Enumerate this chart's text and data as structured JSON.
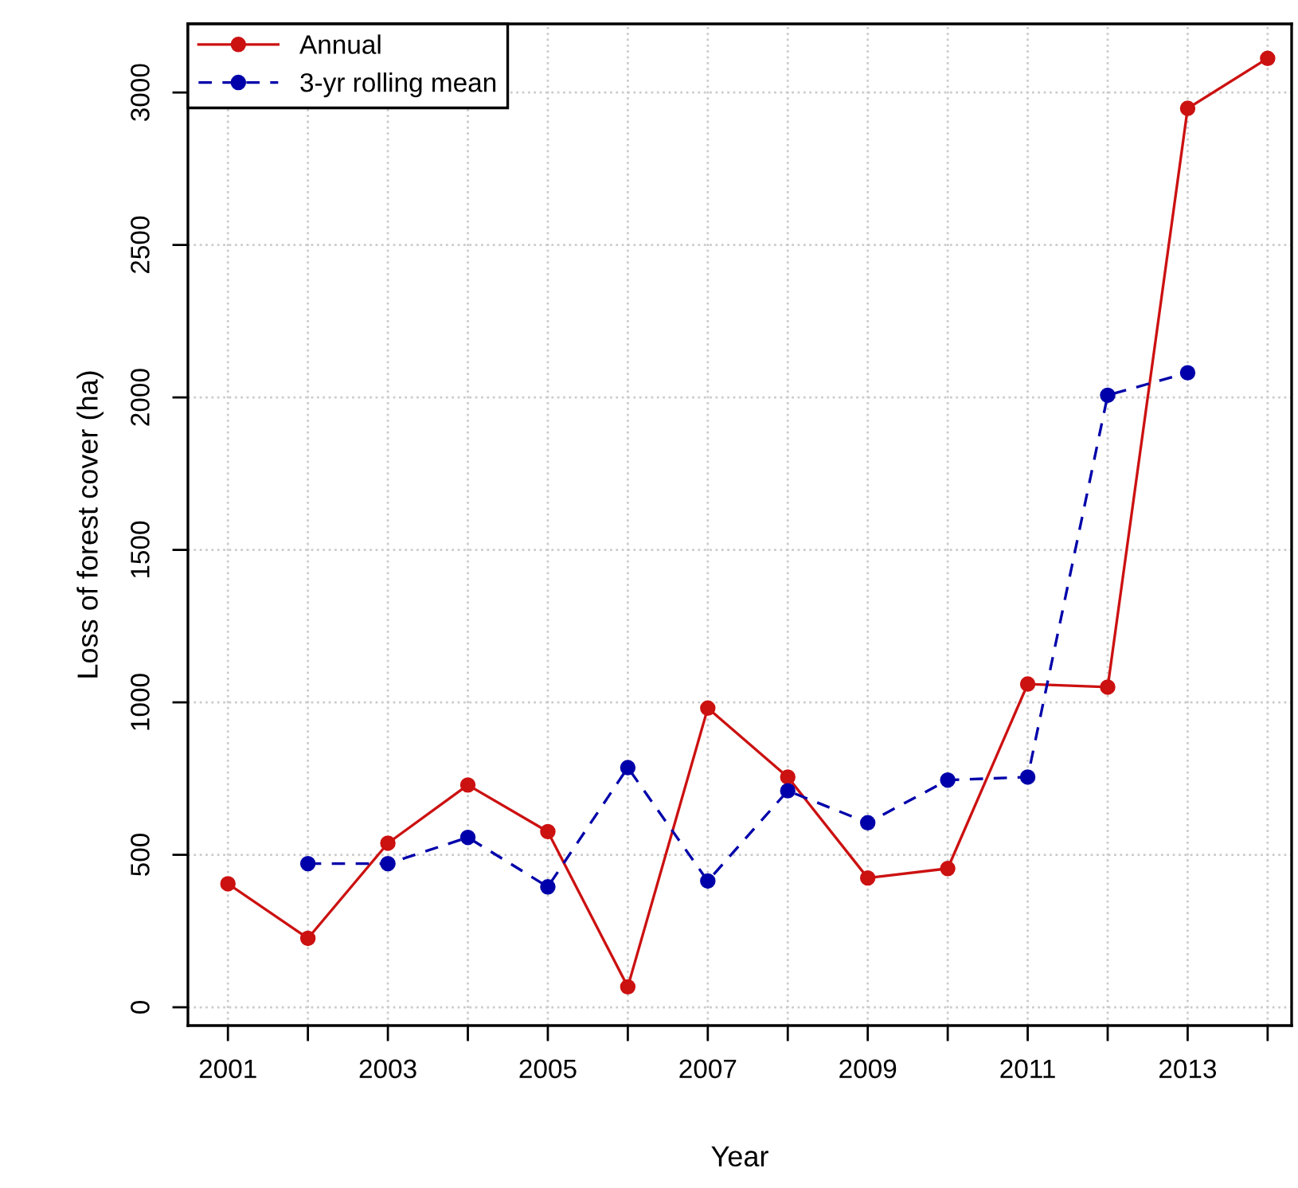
{
  "chart_data": {
    "type": "line",
    "xlabel": "Year",
    "ylabel": "Loss of forest cover (ha)",
    "x": [
      2001,
      2002,
      2003,
      2004,
      2005,
      2006,
      2007,
      2008,
      2009,
      2010,
      2011,
      2012,
      2013,
      2014
    ],
    "series": [
      {
        "name": "Annual",
        "color": "#cc1111",
        "line_style": "solid",
        "values": [
          405,
          226,
          538,
          729,
          576,
          67,
          981,
          755,
          424,
          455,
          1060,
          1050,
          2948,
          3112
        ]
      },
      {
        "name": "3-yr rolling mean",
        "color": "#0000aa",
        "line_style": "dashed",
        "values": [
          null,
          471,
          471,
          557,
          395,
          786,
          414,
          710,
          605,
          745,
          755,
          2007,
          2081,
          null
        ]
      }
    ],
    "marker": "circle",
    "grid": true,
    "legend": "top left",
    "xlim": [
      2000.5,
      2014.3
    ],
    "ylim": [
      -60,
      3225
    ],
    "xticks": [
      2001,
      {
        "value": 2002,
        "label": null
      },
      2003,
      {
        "value": 2004,
        "label": null
      },
      2005,
      {
        "value": 2006,
        "label": null
      },
      2007,
      {
        "value": 2008,
        "label": null
      },
      2009,
      {
        "value": 2010,
        "label": null
      },
      2011,
      {
        "value": 2012,
        "label": null
      },
      2013,
      {
        "value": 2014,
        "label": null
      }
    ],
    "yticks": [
      0,
      500,
      1000,
      1500,
      2000,
      2500,
      3000
    ]
  }
}
